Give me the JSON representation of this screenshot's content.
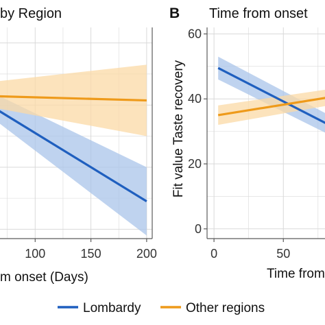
{
  "colors": {
    "lombardy": "#1f5fbf",
    "lombardy_band": "#a9c4ea",
    "other": "#ee9a1a",
    "other_band": "#fbd9a6",
    "grid": "#d9d9d9",
    "panel_border": "#5a5a5a"
  },
  "legend": {
    "items": [
      {
        "label": "Lombardy",
        "color": "#1f5fbf"
      },
      {
        "label": "Other regions",
        "color": "#ee9a1a"
      }
    ]
  },
  "chart_data": [
    {
      "type": "line",
      "panel_letter": "",
      "title": "by Region",
      "xlabel": "m onset (Days)",
      "ylabel": "",
      "x_ticks": [
        100,
        150,
        200
      ],
      "xlim": [
        50,
        205
      ],
      "ylim": [
        -3,
        65
      ],
      "grid": true,
      "series": [
        {
          "name": "Lombardy",
          "x": [
            50,
            200
          ],
          "y": [
            42,
            9
          ],
          "lower": [
            39,
            -2
          ],
          "upper": [
            46,
            20
          ]
        },
        {
          "name": "Other regions",
          "x": [
            50,
            200
          ],
          "y": [
            43,
            41.5
          ],
          "lower": [
            40,
            30
          ],
          "upper": [
            47,
            53
          ]
        }
      ]
    },
    {
      "type": "line",
      "panel_letter": "B",
      "title": "Time from onset",
      "xlabel": "Time from",
      "ylabel": "Fit value Taste recovery",
      "x_ticks": [
        0,
        50
      ],
      "y_ticks": [
        0,
        20,
        40,
        60
      ],
      "xlim": [
        -5,
        83
      ],
      "ylim": [
        -3,
        62
      ],
      "grid": true,
      "series": [
        {
          "name": "Lombardy",
          "x": [
            3,
            83
          ],
          "y": [
            49.5,
            32
          ],
          "lower": [
            46,
            29
          ],
          "upper": [
            53,
            35
          ]
        },
        {
          "name": "Other regions",
          "x": [
            3,
            83
          ],
          "y": [
            35,
            40.5
          ],
          "lower": [
            32,
            38
          ],
          "upper": [
            38,
            43
          ]
        }
      ]
    }
  ]
}
